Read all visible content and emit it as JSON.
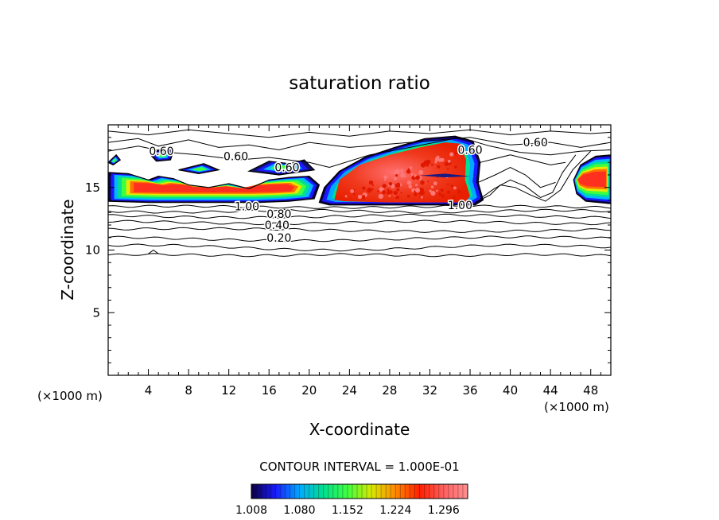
{
  "chart_data": {
    "type": "heatmap",
    "title": "saturation ratio",
    "xlabel": "X-coordinate",
    "ylabel": "Z-coordinate",
    "x_unit_left": "(×1000 m)",
    "x_unit_right": "(×1000 m)",
    "xlim": [
      0,
      50
    ],
    "ylim": [
      0,
      20
    ],
    "xticks": [
      4,
      8,
      12,
      16,
      20,
      24,
      28,
      32,
      36,
      40,
      44,
      48
    ],
    "yticks": [
      5,
      10,
      15
    ],
    "contour_interval_text": "CONTOUR INTERVAL = 1.000E-01",
    "colorbar_labels": [
      "1.008",
      "1.080",
      "1.152",
      "1.224",
      "1.296"
    ],
    "colorbar_range": [
      1.008,
      1.332
    ],
    "colormap": [
      "#0b0040",
      "#1a1aff",
      "#00a8ff",
      "#00e090",
      "#40ff40",
      "#d8e800",
      "#ff8800",
      "#ff2000",
      "#ff6060",
      "#ff9090"
    ],
    "contour_labels": [
      {
        "text": "0.60",
        "x": 5.3,
        "z": 17.9
      },
      {
        "text": "0.60",
        "x": 12.7,
        "z": 17.5
      },
      {
        "text": "0.60",
        "x": 17.8,
        "z": 16.6
      },
      {
        "text": "0.60",
        "x": 36.0,
        "z": 18.0
      },
      {
        "text": "0.60",
        "x": 42.5,
        "z": 18.6
      },
      {
        "text": "1.00",
        "x": 13.8,
        "z": 13.5
      },
      {
        "text": "0.80",
        "x": 17.0,
        "z": 12.9
      },
      {
        "text": "0.40",
        "x": 16.8,
        "z": 12.0
      },
      {
        "text": "0.20",
        "x": 17.0,
        "z": 11.0
      },
      {
        "text": "1.00",
        "x": 35.0,
        "z": 13.6
      }
    ],
    "ice_supersaturated_regions": [
      {
        "x": [
          22,
          36
        ],
        "z": [
          13.7,
          18.8
        ],
        "peak": 1.32
      },
      {
        "x": [
          0,
          6
        ],
        "z": [
          13.8,
          16.2
        ],
        "peak": 1.3
      },
      {
        "x": [
          46.5,
          50
        ],
        "z": [
          13.8,
          17.5
        ],
        "peak": 1.3
      },
      {
        "x": [
          6,
          22
        ],
        "z": [
          13.8,
          17.0
        ],
        "peak": 1.25
      }
    ]
  }
}
